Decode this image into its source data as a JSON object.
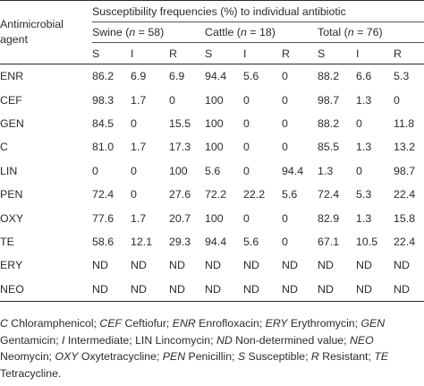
{
  "table": {
    "agent_header": "Antimicrobial agent",
    "group_header": "Susceptibility frequencies (%) to individual antibiotic",
    "groups": [
      {
        "label": "Swine (n = 58)",
        "name": "Swine",
        "n": "58"
      },
      {
        "label": "Cattle (n = 18)",
        "name": "Cattle",
        "n": "18"
      },
      {
        "label": "Total (n = 76)",
        "name": "Total",
        "n": "76"
      }
    ],
    "sub_headers": [
      "S",
      "I",
      "R"
    ],
    "rows": [
      {
        "agent": "ENR",
        "values": [
          "86.2",
          "6.9",
          "6.9",
          "94.4",
          "5.6",
          "0",
          "88.2",
          "6.6",
          "5.3"
        ]
      },
      {
        "agent": "CEF",
        "values": [
          "98.3",
          "1.7",
          "0",
          "100",
          "0",
          "0",
          "98.7",
          "1.3",
          "0"
        ]
      },
      {
        "agent": "GEN",
        "values": [
          "84.5",
          "0",
          "15.5",
          "100",
          "0",
          "0",
          "88.2",
          "0",
          "11.8"
        ]
      },
      {
        "agent": "C",
        "values": [
          "81.0",
          "1.7",
          "17.3",
          "100",
          "0",
          "0",
          "85.5",
          "1.3",
          "13.2"
        ]
      },
      {
        "agent": "LIN",
        "values": [
          "0",
          "0",
          "100",
          "5.6",
          "0",
          "94.4",
          "1.3",
          "0",
          "98.7"
        ]
      },
      {
        "agent": "PEN",
        "values": [
          "72.4",
          "0",
          "27.6",
          "72.2",
          "22.2",
          "5.6",
          "72.4",
          "5.3",
          "22.4"
        ]
      },
      {
        "agent": "OXY",
        "values": [
          "77.6",
          "1.7",
          "20.7",
          "100",
          "0",
          "0",
          "82.9",
          "1.3",
          "15.8"
        ]
      },
      {
        "agent": "TE",
        "values": [
          "58.6",
          "12.1",
          "29.3",
          "94.4",
          "5.6",
          "0",
          "67.1",
          "10.5",
          "22.4"
        ]
      },
      {
        "agent": "ERY",
        "values": [
          "ND",
          "ND",
          "ND",
          "ND",
          "ND",
          "ND",
          "ND",
          "ND",
          "ND"
        ]
      },
      {
        "agent": "NEO",
        "values": [
          "ND",
          "ND",
          "ND",
          "ND",
          "ND",
          "ND",
          "ND",
          "ND",
          "ND"
        ]
      }
    ]
  },
  "footnote": [
    {
      "abbr": "C",
      "text": " Chloramphenicol; "
    },
    {
      "abbr": "CEF",
      "text": " Ceftiofur; "
    },
    {
      "abbr": "ENR",
      "text": " Enrofloxacin; "
    },
    {
      "abbr": "ERY",
      "text": " Erythromycin; "
    },
    {
      "abbr": "GEN",
      "text": " Gentamicin; "
    },
    {
      "abbr": "I",
      "text": " Intermediate; "
    },
    {
      "abbr": "LIN",
      "text": " Lincomycin; ",
      "plain": true
    },
    {
      "abbr": "ND",
      "text": " Non-determined value; "
    },
    {
      "abbr": "NEO",
      "text": " Neomycin; "
    },
    {
      "abbr": "OXY",
      "text": " Oxytetracycline; "
    },
    {
      "abbr": "PEN",
      "text": " Penicillin; "
    },
    {
      "abbr": "S",
      "text": " Susceptible; "
    },
    {
      "abbr": "R",
      "text": " Resistant; "
    },
    {
      "abbr": "TE",
      "text": " Tetracycline."
    }
  ]
}
